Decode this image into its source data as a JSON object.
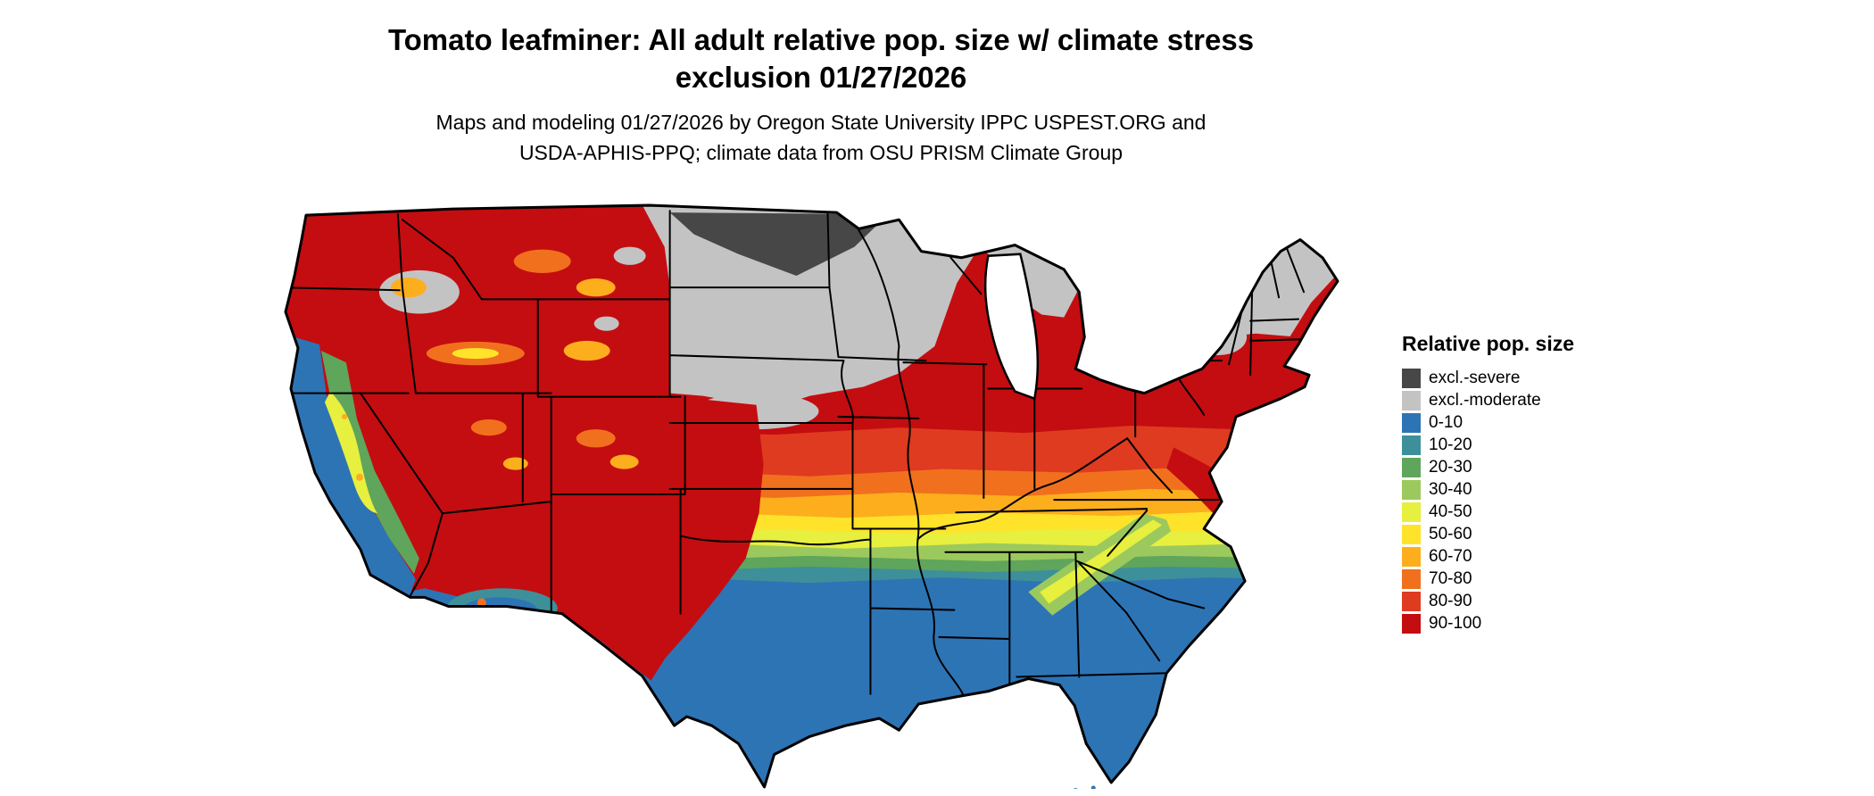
{
  "header": {
    "title_line1": "Tomato leafminer: All adult relative pop. size w/ climate stress",
    "title_line2": "exclusion 01/27/2026",
    "subtitle_line1": "Maps and modeling 01/27/2026 by Oregon State University IPPC USPEST.ORG and",
    "subtitle_line2": "USDA-APHIS-PPQ; climate data from OSU PRISM Climate Group"
  },
  "map": {
    "region": "Continental United States",
    "kind": "raster choropleth with state boundaries"
  },
  "legend": {
    "title": "Relative pop. size",
    "items": [
      {
        "label": "excl.-severe",
        "color": "#474747"
      },
      {
        "label": "excl.-moderate",
        "color": "#c3c3c3"
      },
      {
        "label": "0-10",
        "color": "#2d74b5"
      },
      {
        "label": "10-20",
        "color": "#3d9099"
      },
      {
        "label": "20-30",
        "color": "#5fa55b"
      },
      {
        "label": "30-40",
        "color": "#9cc95d"
      },
      {
        "label": "40-50",
        "color": "#e7ef3f"
      },
      {
        "label": "50-60",
        "color": "#ffe32b"
      },
      {
        "label": "60-70",
        "color": "#fdae1d"
      },
      {
        "label": "70-80",
        "color": "#f1701e"
      },
      {
        "label": "80-90",
        "color": "#df3b20"
      },
      {
        "label": "90-100",
        "color": "#c40d10"
      }
    ]
  }
}
